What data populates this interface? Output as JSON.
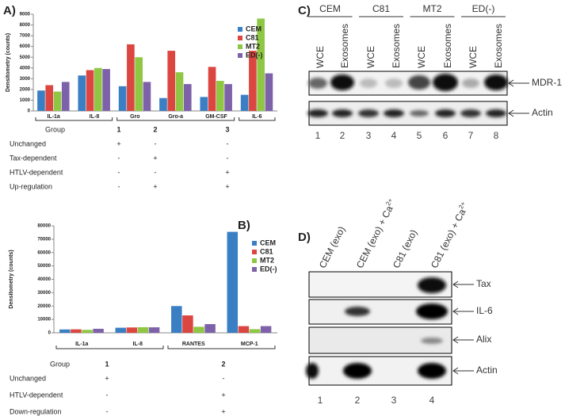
{
  "chart_data": [
    {
      "type": "bar",
      "panel": "A)",
      "y_label": "Densitometry (counts)",
      "categories": [
        "IL-1a",
        "IL-8",
        "Gro",
        "Gro-a",
        "GM-CSF",
        "IL-6"
      ],
      "series": [
        {
          "name": "CEM",
          "color": "#3a7fc4",
          "values": [
            1900,
            3300,
            2300,
            1200,
            1300,
            1500
          ]
        },
        {
          "name": "C81",
          "color": "#dc4640",
          "values": [
            2400,
            3800,
            6200,
            5600,
            4100,
            5600
          ]
        },
        {
          "name": "MT2",
          "color": "#8fc744",
          "values": [
            1800,
            4000,
            5000,
            3600,
            2800,
            8600
          ]
        },
        {
          "name": "ED(-)",
          "color": "#7e62a9",
          "values": [
            2700,
            3900,
            2700,
            2500,
            2500,
            3500
          ]
        }
      ],
      "ylim": [
        0,
        9000
      ],
      "yticks": [
        0,
        1000,
        2000,
        3000,
        4000,
        5000,
        6000,
        7000,
        8000,
        9000
      ],
      "legend": "right"
    },
    {
      "type": "bar",
      "panel": "B)",
      "y_label": "Densitometry (counts)",
      "categories": [
        "IL-1a",
        "IL-8",
        "RANTES",
        "MCP-1"
      ],
      "series": [
        {
          "name": "CEM",
          "color": "#3a7fc4",
          "values": [
            2500,
            3800,
            20000,
            75500
          ]
        },
        {
          "name": "C81",
          "color": "#dc4640",
          "values": [
            2600,
            4000,
            13000,
            5000
          ]
        },
        {
          "name": "MT2",
          "color": "#8fc744",
          "values": [
            2200,
            4200,
            4500,
            2700
          ]
        },
        {
          "name": "ED(-)",
          "color": "#7e62a9",
          "values": [
            3000,
            4100,
            6500,
            5000
          ]
        }
      ],
      "ylim": [
        0,
        80000
      ],
      "yticks": [
        0,
        10000,
        20000,
        30000,
        40000,
        50000,
        60000,
        70000,
        80000
      ],
      "legend": "right"
    }
  ],
  "tables": [
    {
      "rows": [
        [
          "Group",
          "1",
          "2",
          "3"
        ],
        [
          "Unchanged",
          "+",
          "-",
          "-"
        ],
        [
          "Tax-dependent",
          "-",
          "+",
          "-"
        ],
        [
          "HTLV-dependent",
          "-",
          "-",
          "+"
        ],
        [
          "Up-regulation",
          "-",
          "+",
          "+"
        ]
      ]
    },
    {
      "rows": [
        [
          "Group",
          "1",
          "2"
        ],
        [
          "Unchanged",
          "+",
          "-"
        ],
        [
          "HTLV-dependent",
          "-",
          "+"
        ],
        [
          "Down-regulation",
          "-",
          "+"
        ]
      ]
    }
  ],
  "blots": [
    {
      "panel": "C)",
      "groups": [
        "CEM",
        "C81",
        "MT2",
        "ED(-)"
      ],
      "lanes": [
        "WCE",
        "Exosomes",
        "WCE",
        "Exosomes",
        "WCE",
        "Exosomes",
        "WCE",
        "Exosomes"
      ],
      "rows": [
        "MDR-1",
        "Actin"
      ],
      "lane_numbers": [
        "1",
        "2",
        "3",
        "4",
        "5",
        "6",
        "7",
        "8"
      ]
    },
    {
      "panel": "D)",
      "lanes": [
        {
          "text": "CEM (exo)"
        },
        {
          "text": "CEM (exo) + Ca",
          "sup": "2+"
        },
        {
          "text": "C81 (exo)"
        },
        {
          "text": "C81 (exo) + Ca",
          "sup": "2+"
        }
      ],
      "rows": [
        "Tax",
        "IL-6",
        "Alix",
        "Actin"
      ],
      "lane_numbers": [
        "1",
        "2",
        "3",
        "4"
      ]
    }
  ]
}
